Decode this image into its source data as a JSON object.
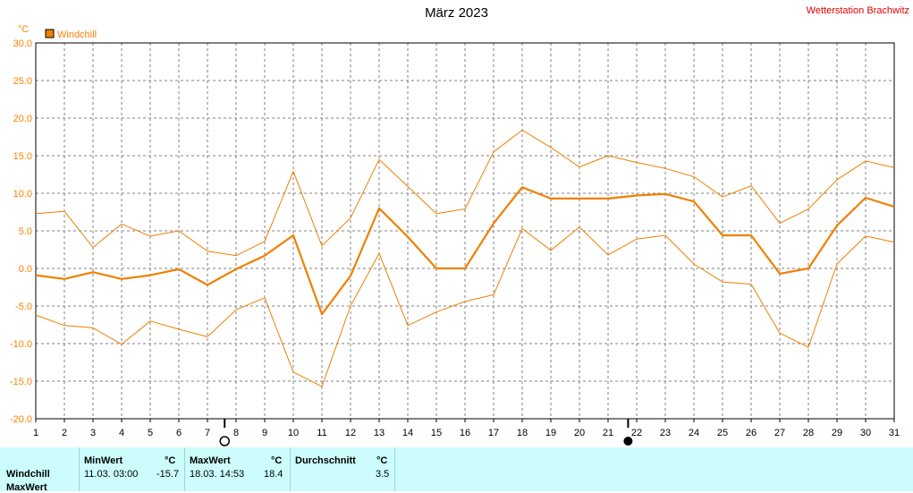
{
  "header": {
    "title": "März 2023",
    "station": "Wetterstation Brachwitz"
  },
  "chart_data": {
    "type": "line",
    "title": "März 2023",
    "ylabel": "°C",
    "ylim": [
      -20,
      30
    ],
    "yticks": [
      "30.0",
      "25.0",
      "20.0",
      "15.0",
      "10.0",
      "5.0",
      "0.0",
      "-5.0",
      "-10.0",
      "-15.0",
      "-20.0"
    ],
    "x": [
      1,
      2,
      3,
      4,
      5,
      6,
      7,
      8,
      9,
      10,
      11,
      12,
      13,
      14,
      15,
      16,
      17,
      18,
      19,
      20,
      21,
      22,
      23,
      24,
      25,
      26,
      27,
      28,
      29,
      30,
      31
    ],
    "xlim": [
      1,
      31
    ],
    "grid": true,
    "legend": "top-left",
    "moon_phases": [
      {
        "day": 7.6,
        "symbol": "full-moon"
      },
      {
        "day": 21.7,
        "symbol": "new-moon"
      }
    ],
    "series": [
      {
        "name": "Windchill",
        "role": "mean",
        "values": [
          -0.9,
          -1.4,
          -0.5,
          -1.4,
          -0.9,
          -0.1,
          -2.2,
          -0.1,
          1.7,
          4.4,
          -6.1,
          -1.0,
          8.0,
          4.2,
          0.0,
          0.0,
          6.0,
          10.8,
          9.3,
          9.3,
          9.3,
          9.7,
          9.9,
          8.9,
          4.4,
          4.4,
          -0.7,
          0.0,
          5.7,
          9.4,
          8.2
        ]
      },
      {
        "role": "max",
        "values": [
          7.3,
          7.6,
          2.8,
          5.9,
          4.3,
          5.0,
          2.3,
          1.7,
          3.6,
          12.9,
          3.0,
          6.7,
          14.5,
          10.9,
          7.3,
          7.9,
          15.5,
          18.4,
          16.1,
          13.5,
          15.0,
          14.1,
          13.3,
          12.2,
          9.5,
          11.0,
          6.0,
          7.9,
          11.8,
          14.3,
          13.4
        ]
      },
      {
        "role": "min",
        "values": [
          -6.2,
          -7.6,
          -7.9,
          -10.1,
          -7.0,
          -8.1,
          -9.1,
          -5.5,
          -3.9,
          -13.8,
          -15.7,
          -5.0,
          2.0,
          -7.6,
          -5.8,
          -4.4,
          -3.5,
          5.3,
          2.4,
          5.5,
          1.8,
          3.9,
          4.4,
          0.6,
          -1.8,
          -2.1,
          -8.6,
          -10.5,
          0.6,
          4.3,
          3.5
        ]
      }
    ],
    "colors": {
      "line": "#f08000",
      "grid": "#808080",
      "axis_text": "#ff8000"
    }
  },
  "stats": {
    "row_label": "Windchill",
    "next_label": "MaxWert",
    "min": {
      "header": "MinWert",
      "unit": "°C",
      "datetime": "11.03.  03:00",
      "value": "-15.7"
    },
    "max": {
      "header": "MaxWert",
      "unit": "°C",
      "datetime": "18.03.  14:53",
      "value": "18.4"
    },
    "avg": {
      "header": "Durchschnitt",
      "unit": "°C",
      "value": "3.5"
    }
  }
}
